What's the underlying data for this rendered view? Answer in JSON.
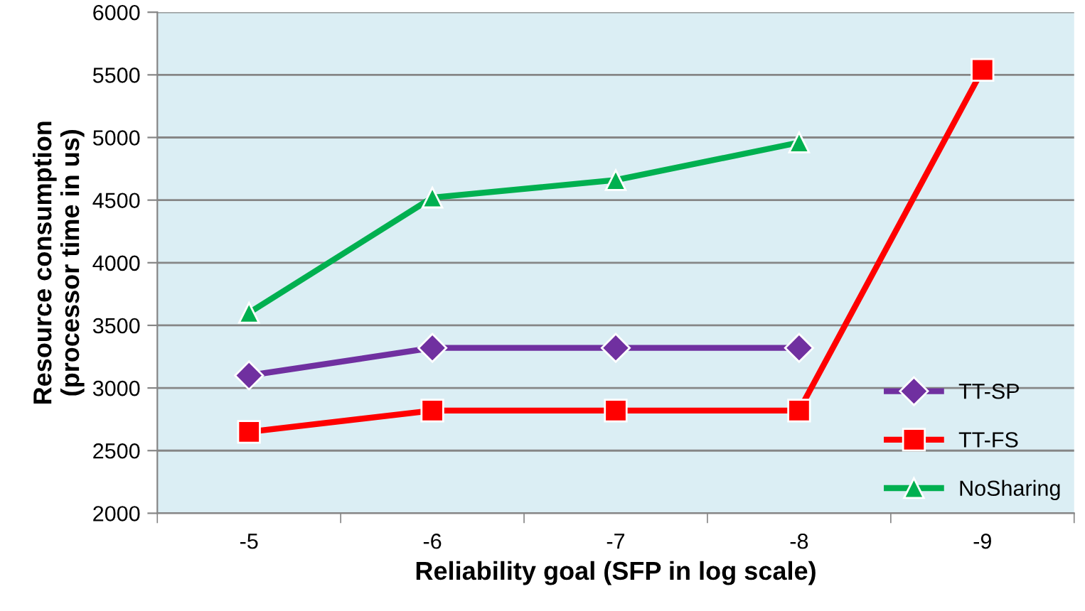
{
  "chart_data": {
    "type": "line",
    "xlabel": "Reliability goal (SFP in log scale)",
    "ylabel": "Resource consumption\n(processor time in us)",
    "categories": [
      "-5",
      "-6",
      "-7",
      "-8",
      "-9"
    ],
    "series": [
      {
        "name": "TT-SP",
        "color": "#7030a0",
        "marker": "diamond",
        "values": [
          3100,
          3320,
          3320,
          3320,
          null
        ]
      },
      {
        "name": "TT-FS",
        "color": "#ff0000",
        "marker": "square",
        "values": [
          2650,
          2820,
          2820,
          2820,
          5540
        ]
      },
      {
        "name": "NoSharing",
        "color": "#00b050",
        "marker": "triangle",
        "values": [
          3600,
          4520,
          4660,
          4960,
          null
        ]
      }
    ],
    "ylim": [
      2000,
      6000
    ],
    "yticks": [
      2000,
      2500,
      3000,
      3500,
      4000,
      4500,
      5000,
      5500,
      6000
    ],
    "grid": "y",
    "legend": "bottom right"
  }
}
